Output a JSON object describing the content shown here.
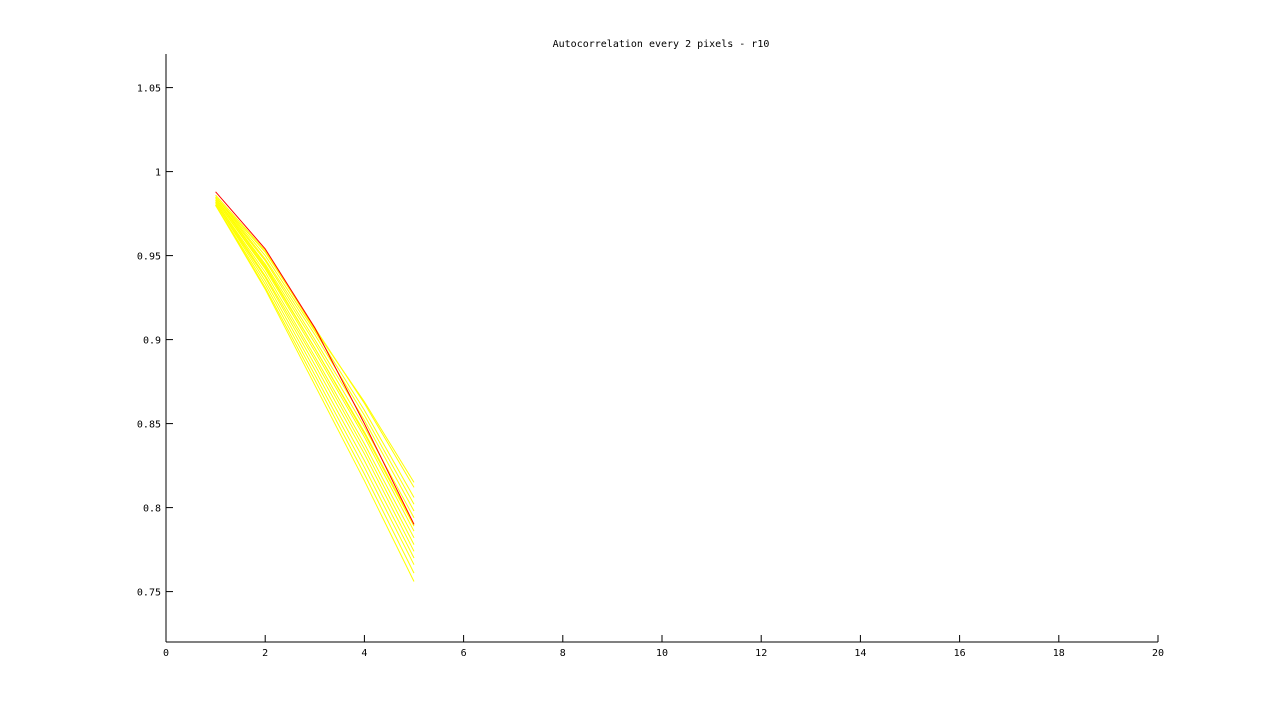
{
  "chart_data": {
    "type": "line",
    "title": "Autocorrelation every 2 pixels - r10",
    "xlabel": "",
    "ylabel": "",
    "xlim": [
      0,
      20
    ],
    "ylim": [
      0.72,
      1.07
    ],
    "grid": false,
    "xticks": [
      0,
      2,
      4,
      6,
      8,
      10,
      12,
      14,
      16,
      18,
      20
    ],
    "yticks": [
      0.75,
      0.8,
      0.85,
      0.9,
      0.95,
      1,
      1.05
    ],
    "xtick_labels": [
      "0",
      "2",
      "4",
      "6",
      "8",
      "10",
      "12",
      "14",
      "16",
      "18",
      "20"
    ],
    "ytick_labels": [
      "0.75",
      "0.8",
      "0.85",
      "0.9",
      "0.95",
      "1",
      "1.05"
    ],
    "colors": {
      "highlight": "#ff0000",
      "others": "#ffff00",
      "axes": "#000000"
    },
    "series": [
      {
        "color": "#ffff00",
        "x": [
          1,
          2,
          3,
          4,
          5
        ],
        "y": [
          0.985,
          0.95,
          0.905,
          0.858,
          0.806
        ]
      },
      {
        "color": "#ffff00",
        "x": [
          1,
          2,
          3,
          4,
          5
        ],
        "y": [
          0.985,
          0.948,
          0.903,
          0.855,
          0.802
        ]
      },
      {
        "color": "#ffff00",
        "x": [
          1,
          2,
          3,
          4,
          5
        ],
        "y": [
          0.984,
          0.947,
          0.9,
          0.852,
          0.798
        ]
      },
      {
        "color": "#ffff00",
        "x": [
          1,
          2,
          3,
          4,
          5
        ],
        "y": [
          0.984,
          0.945,
          0.898,
          0.848,
          0.794
        ]
      },
      {
        "color": "#ffff00",
        "x": [
          1,
          2,
          3,
          4,
          5
        ],
        "y": [
          0.983,
          0.943,
          0.895,
          0.845,
          0.79
        ]
      },
      {
        "color": "#ffff00",
        "x": [
          1,
          2,
          3,
          4,
          5
        ],
        "y": [
          0.983,
          0.942,
          0.893,
          0.842,
          0.786
        ]
      },
      {
        "color": "#ffff00",
        "x": [
          1,
          2,
          3,
          4,
          5
        ],
        "y": [
          0.982,
          0.94,
          0.89,
          0.838,
          0.782
        ]
      },
      {
        "color": "#ffff00",
        "x": [
          1,
          2,
          3,
          4,
          5
        ],
        "y": [
          0.982,
          0.938,
          0.888,
          0.835,
          0.778
        ]
      },
      {
        "color": "#ffff00",
        "x": [
          1,
          2,
          3,
          4,
          5
        ],
        "y": [
          0.981,
          0.937,
          0.885,
          0.832,
          0.774
        ]
      },
      {
        "color": "#ffff00",
        "x": [
          1,
          2,
          3,
          4,
          5
        ],
        "y": [
          0.981,
          0.935,
          0.882,
          0.828,
          0.77
        ]
      },
      {
        "color": "#ffff00",
        "x": [
          1,
          2,
          3,
          4,
          5
        ],
        "y": [
          0.98,
          0.933,
          0.879,
          0.824,
          0.766
        ]
      },
      {
        "color": "#ffff00",
        "x": [
          1,
          2,
          3,
          4,
          5
        ],
        "y": [
          0.98,
          0.931,
          0.876,
          0.82,
          0.761
        ]
      },
      {
        "color": "#ffff00",
        "x": [
          1,
          2,
          3,
          4,
          5
        ],
        "y": [
          0.98,
          0.93,
          0.873,
          0.816,
          0.756
        ]
      },
      {
        "color": "#ffff00",
        "x": [
          1,
          2,
          3,
          4,
          5
        ],
        "y": [
          0.985,
          0.952,
          0.907,
          0.862,
          0.812
        ]
      },
      {
        "color": "#ffff00",
        "x": [
          1,
          2,
          3,
          4,
          5
        ],
        "y": [
          0.986,
          0.953,
          0.906,
          0.863,
          0.815
        ]
      },
      {
        "color": "#ffff00",
        "x": [
          1,
          2,
          3,
          4,
          5
        ],
        "y": [
          0.984,
          0.944,
          0.895,
          0.844,
          0.789
        ]
      },
      {
        "color": "#ff0000",
        "x": [
          1,
          2,
          3,
          4,
          5
        ],
        "y": [
          0.988,
          0.954,
          0.907,
          0.85,
          0.79
        ]
      }
    ]
  }
}
